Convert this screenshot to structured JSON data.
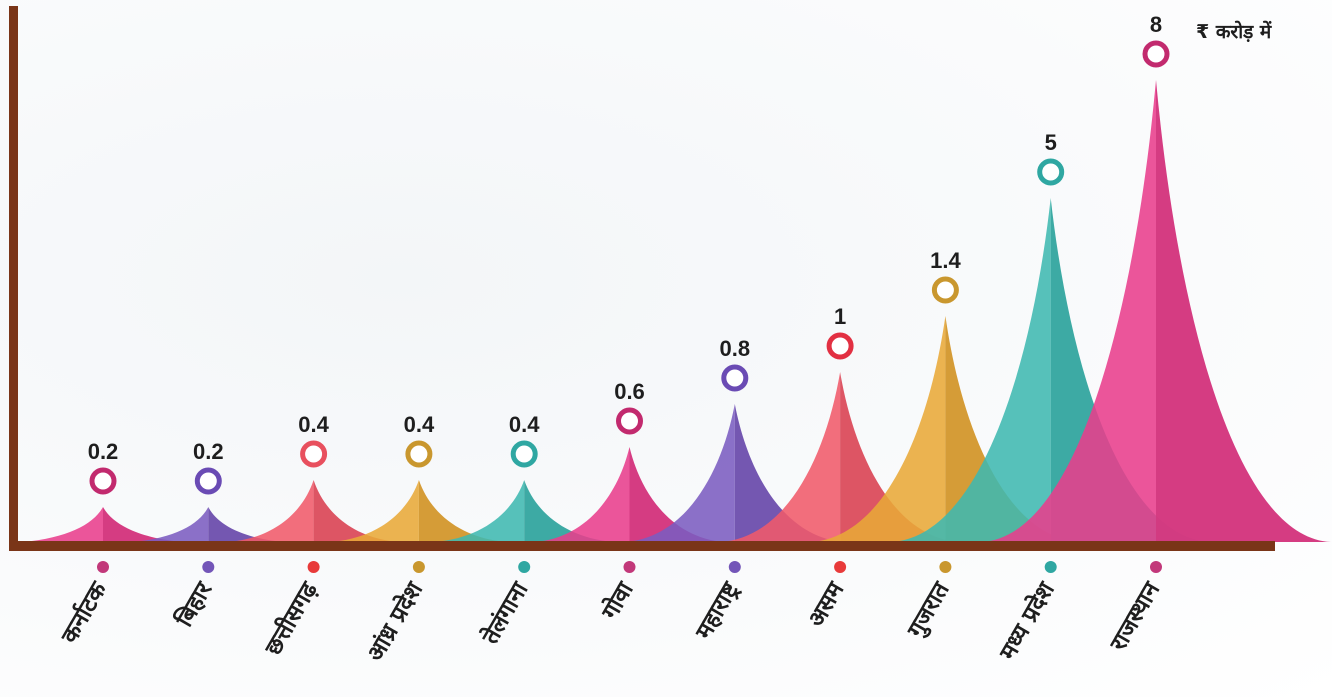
{
  "chart_data": {
    "type": "bar",
    "unit_label": "₹ करोड़ में",
    "categories": [
      "कर्नाटक",
      "बिहार",
      "छत्तीसगढ़",
      "आंध्र प्रदेश",
      "तेलंगाना",
      "गोवा",
      "महाराष्ट्र",
      "असम",
      "गुजरात",
      "मध्य प्रदेश",
      "राजस्थान"
    ],
    "values": [
      0.2,
      0.2,
      0.4,
      0.4,
      0.4,
      0.6,
      0.8,
      1,
      1.4,
      5,
      8
    ],
    "value_labels": [
      "0.2",
      "0.2",
      "0.4",
      "0.4",
      "0.4",
      "0.6",
      "0.8",
      "1",
      "1.4",
      "5",
      "8"
    ],
    "colors": [
      "#e83e8c",
      "#7b5cc0",
      "#f05a6a",
      "#e8a838",
      "#3fb8b0",
      "#e83e8c",
      "#7b5cc0",
      "#f05a6a",
      "#e8a838",
      "#3fb8b0",
      "#e83e8c"
    ],
    "ring_colors": [
      "#c22a6e",
      "#6a4bb4",
      "#e8505e",
      "#c9972e",
      "#2fa7a2",
      "#c22a6e",
      "#6a4bb4",
      "#e23042",
      "#c9972e",
      "#2fa7a2",
      "#c22a6e"
    ],
    "dot_colors": [
      "#c2387a",
      "#7355b8",
      "#e83a3a",
      "#c9972e",
      "#2fa7a2",
      "#c2387a",
      "#7355b8",
      "#e83a3a",
      "#c9972e",
      "#2fa7a2",
      "#c2387a"
    ],
    "axis_color": "#7a3518"
  }
}
